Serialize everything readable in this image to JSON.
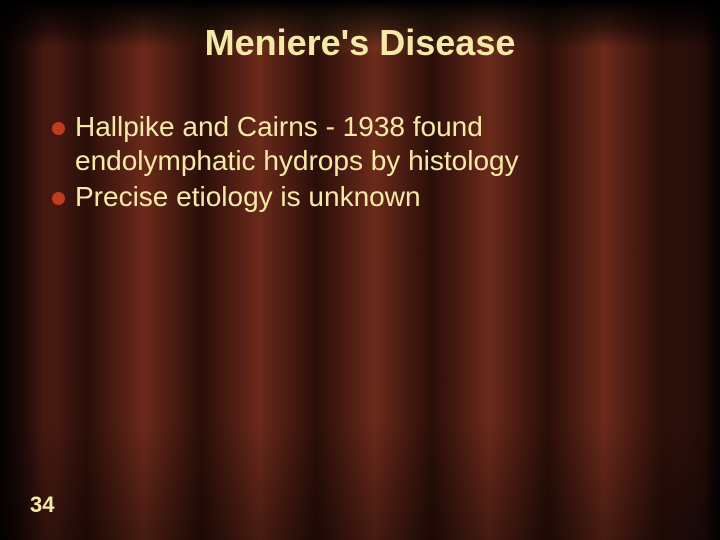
{
  "slide": {
    "title": "Meniere's Disease",
    "title_fontsize": 36,
    "title_color": "#f5e9a8",
    "bullets": [
      {
        "text": "Hallpike and Cairns - 1938 found endolymphatic hydrops by histology"
      },
      {
        "text": "Precise etiology is unknown"
      }
    ],
    "bullet_fontsize": 28,
    "bullet_text_color": "#f5e9a8",
    "bullet_dot_color": "#c23b1e",
    "bullet_dot_size": 13,
    "bullet_line_height": 1.22,
    "slide_number": "34",
    "slide_number_fontsize": 22,
    "slide_number_color": "#f5e9a8",
    "background_base": "#1a0a06"
  }
}
